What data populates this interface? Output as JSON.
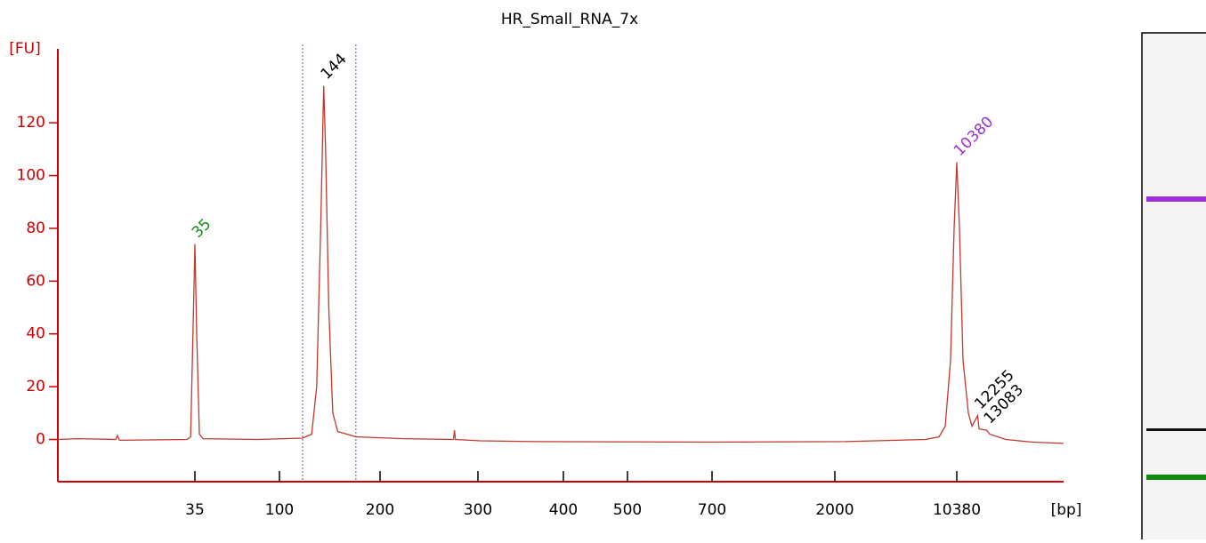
{
  "chart_data": {
    "type": "line",
    "title": "HR_Small_RNA_7x",
    "ylabel": "[FU]",
    "xlabel": "[bp]",
    "ylim": [
      -16,
      148
    ],
    "yticks": [
      0,
      20,
      40,
      60,
      80,
      100,
      120
    ],
    "xlim": [
      0,
      20000
    ],
    "xticks": [
      35,
      100,
      200,
      300,
      400,
      500,
      700,
      2000,
      10380
    ],
    "series": [
      {
        "color": "#c0392b",
        "x": [
          0,
          5.2,
          14.8,
          15.2,
          15.7,
          33,
          33.9,
          34.5,
          35,
          36.4,
          38.4,
          41.2,
          83.6,
          123,
          132,
          137,
          141,
          144,
          145.8,
          149,
          153,
          158,
          167,
          176,
          223,
          275,
          276,
          277,
          303,
          366,
          700,
          2734,
          8242,
          9160,
          9584,
          9952,
          10196,
          10380,
          10620,
          10941,
          11422,
          11743,
          12255,
          12385,
          13083,
          13343,
          14787,
          17193,
          20000
        ],
        "values": [
          0,
          0.3,
          0,
          1.5,
          -0.3,
          0,
          1,
          40,
          74,
          40,
          2,
          0.3,
          0,
          0.5,
          2,
          20,
          80,
          134,
          110,
          50,
          10,
          3,
          2,
          1,
          0.3,
          0,
          3.5,
          0,
          -0.5,
          -0.8,
          -1,
          -0.8,
          0,
          1,
          5,
          30,
          80,
          105,
          80,
          30,
          10,
          5,
          9,
          4,
          3.5,
          2,
          0,
          -1,
          -1.5
        ]
      }
    ],
    "peaks": {
      "x": [
        35,
        144,
        10380,
        12255,
        13083
      ],
      "y": [
        74,
        134,
        105,
        9,
        3.5
      ],
      "colors": [
        "#1a8a1a",
        "#000000",
        "#9b30d9",
        "#000000",
        "#000000"
      ]
    },
    "region": {
      "from": 123,
      "to": 176,
      "color": "#5555aa"
    },
    "gel_bands": {
      "colors": [
        "#9b30d9",
        "#111111",
        "#128a12"
      ]
    }
  }
}
